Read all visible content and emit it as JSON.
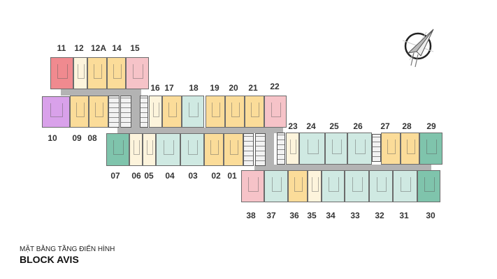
{
  "title": {
    "line1": "MẶT BẰNG TẦNG ĐIỂN HÌNH",
    "line2": "BLOCK AVIS"
  },
  "compass": {
    "icon": "north-arrow-compass-icon"
  },
  "colors": {
    "red": "#f08a8f",
    "cream": "#fdf4dc",
    "yellow": "#fbdc99",
    "pink": "#f6c3c8",
    "purple": "#d9a1ea",
    "mint": "#cfe9e2",
    "green": "#7fc4ac",
    "corridor": "#b3b3b3"
  },
  "units": [
    {
      "label": "11",
      "type": "red"
    },
    {
      "label": "12",
      "type": "cream"
    },
    {
      "label": "12A",
      "type": "yellow"
    },
    {
      "label": "14",
      "type": "yellow"
    },
    {
      "label": "15",
      "type": "pink"
    },
    {
      "label": "10",
      "type": "purple"
    },
    {
      "label": "09",
      "type": "yellow"
    },
    {
      "label": "08",
      "type": "yellow"
    },
    {
      "label": "16",
      "type": "cream"
    },
    {
      "label": "17",
      "type": "yellow"
    },
    {
      "label": "18",
      "type": "mint"
    },
    {
      "label": "19",
      "type": "yellow"
    },
    {
      "label": "20",
      "type": "yellow"
    },
    {
      "label": "21",
      "type": "yellow"
    },
    {
      "label": "22",
      "type": "pink"
    },
    {
      "label": "07",
      "type": "green"
    },
    {
      "label": "06",
      "type": "cream"
    },
    {
      "label": "05",
      "type": "cream"
    },
    {
      "label": "04",
      "type": "mint"
    },
    {
      "label": "03",
      "type": "mint"
    },
    {
      "label": "02",
      "type": "yellow"
    },
    {
      "label": "01",
      "type": "yellow"
    },
    {
      "label": "23",
      "type": "cream"
    },
    {
      "label": "24",
      "type": "mint"
    },
    {
      "label": "25",
      "type": "mint"
    },
    {
      "label": "26",
      "type": "mint"
    },
    {
      "label": "27",
      "type": "yellow"
    },
    {
      "label": "28",
      "type": "yellow"
    },
    {
      "label": "29",
      "type": "green"
    },
    {
      "label": "38",
      "type": "pink"
    },
    {
      "label": "37",
      "type": "mint"
    },
    {
      "label": "36",
      "type": "yellow"
    },
    {
      "label": "35",
      "type": "cream"
    },
    {
      "label": "34",
      "type": "mint"
    },
    {
      "label": "33",
      "type": "mint"
    },
    {
      "label": "32",
      "type": "mint"
    },
    {
      "label": "31",
      "type": "mint"
    },
    {
      "label": "30",
      "type": "green"
    }
  ]
}
